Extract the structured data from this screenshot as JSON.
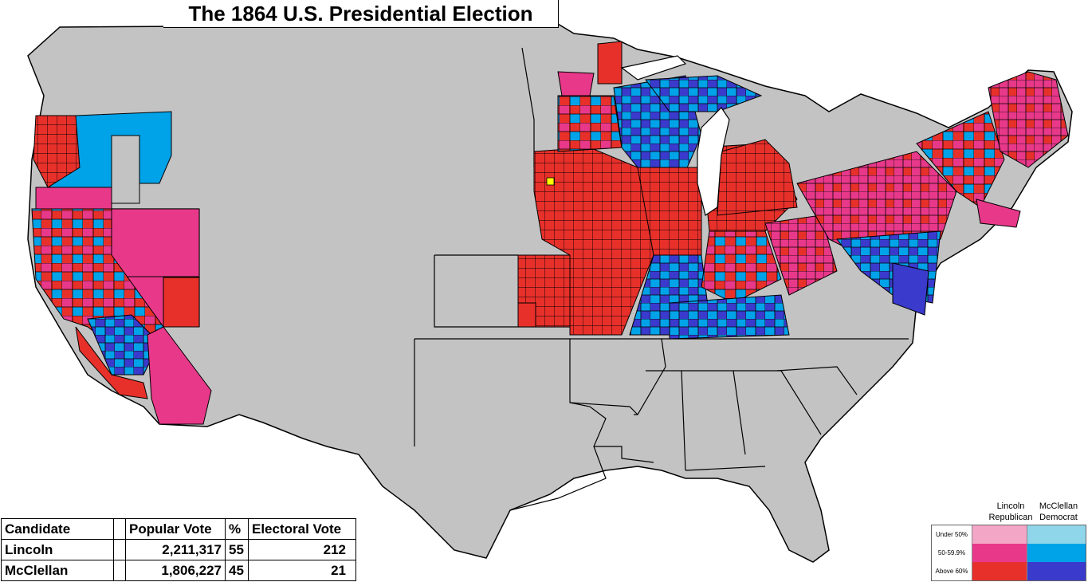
{
  "title": "The 1864 U.S. Presidential Election",
  "table": {
    "headers": [
      "Candidate",
      "",
      "Popular Vote",
      "%",
      "Electoral Vote"
    ],
    "rows": [
      {
        "candidate": "Lincoln",
        "popular_vote": "2,211,317",
        "percent": "55",
        "electoral_vote": "212"
      },
      {
        "candidate": "McClellan",
        "popular_vote": "1,806,227",
        "percent": "45",
        "electoral_vote": "21"
      }
    ]
  },
  "legend": {
    "lincoln_label": "Lincoln",
    "lincoln_party": "Republican",
    "mcclellan_label": "McClellan",
    "mcclellan_party": "Democrat",
    "tiers": [
      "Under 50%",
      "50-59.9%",
      "Above 60%"
    ]
  },
  "colors": {
    "lincoln_under50": "#f4a6c6",
    "lincoln_50_60": "#e8388a",
    "lincoln_above60": "#e8302a",
    "mcclellan_under50": "#90d6ea",
    "mcclellan_50_60": "#00a2e8",
    "mcclellan_above60": "#3a3acc",
    "no_vote": "#c3c3c3",
    "tie": "#ffff00"
  }
}
